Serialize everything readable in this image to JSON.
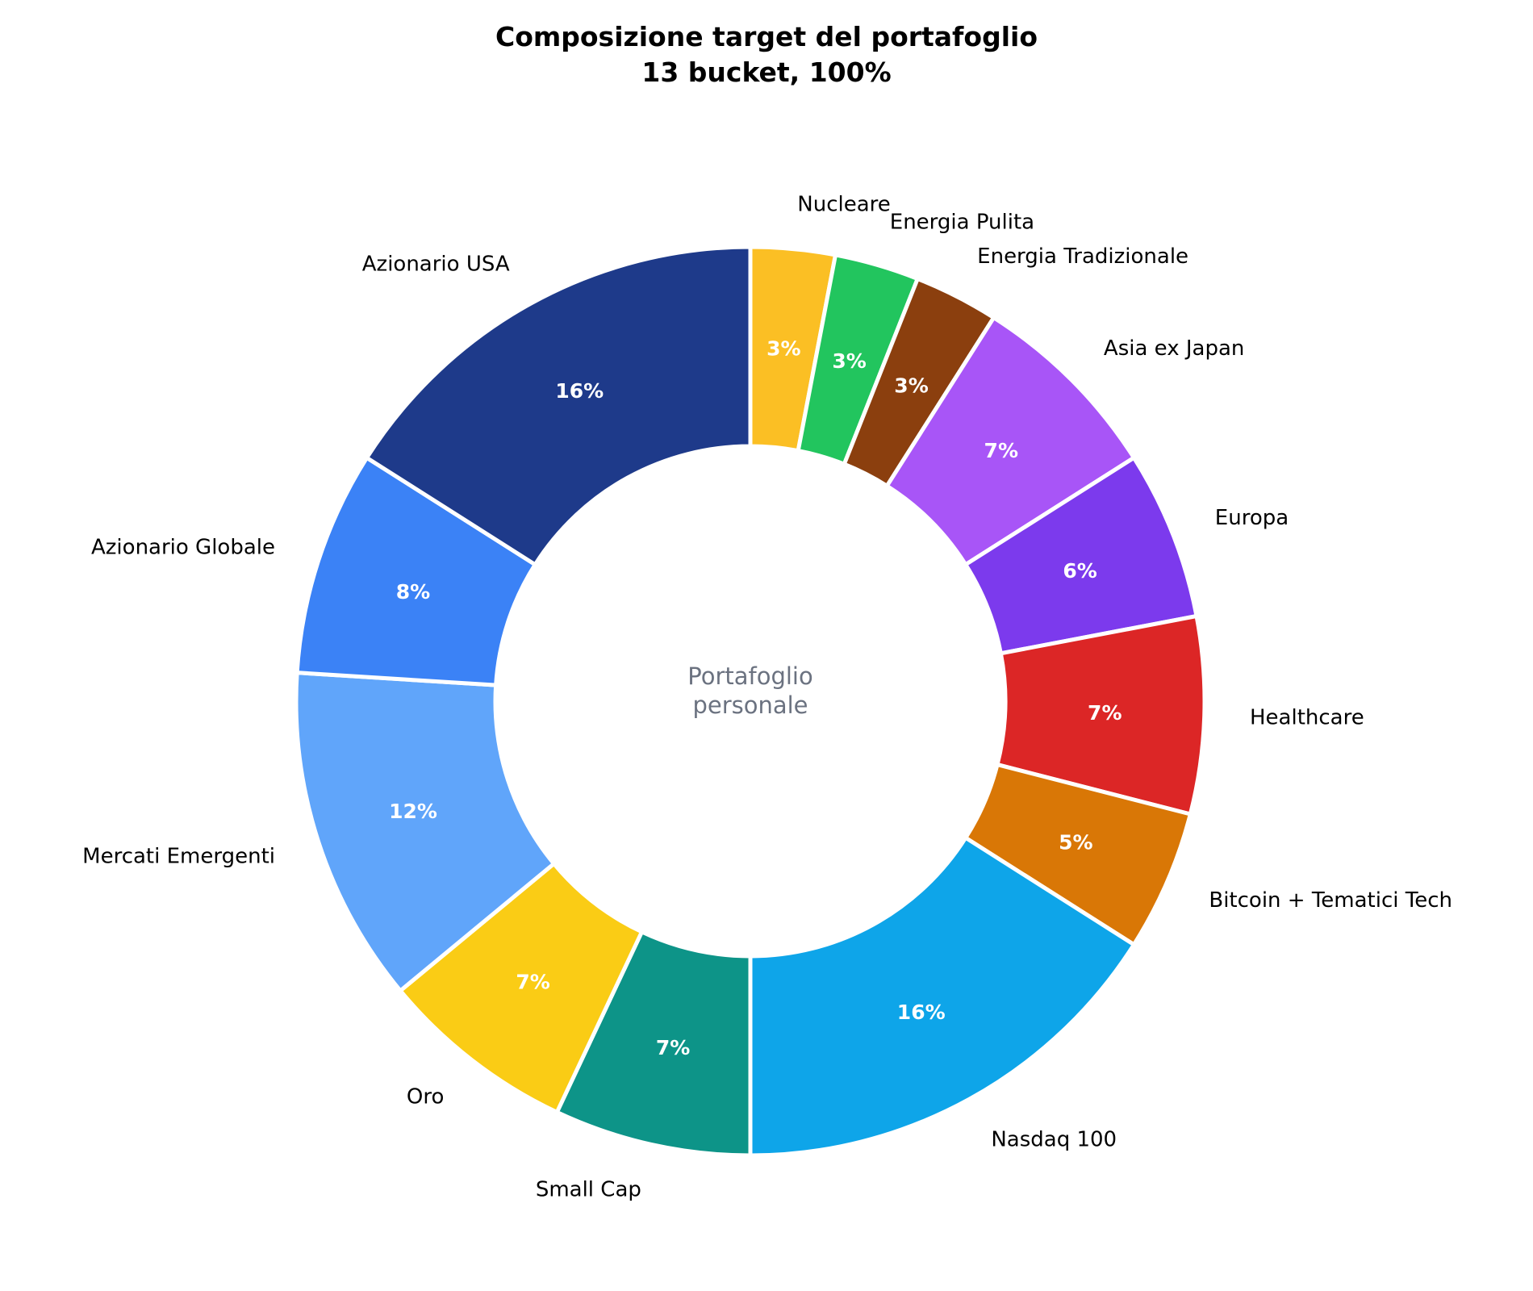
{
  "chart_data": {
    "type": "pie",
    "variant": "donut",
    "title": "Composizione target del portafoglio",
    "subtitle": "13 bucket, 100%",
    "center_label": [
      "Portafoglio",
      "personale"
    ],
    "start": "top, clockwise",
    "slices": [
      {
        "label": "Nucleare",
        "value": 3,
        "display": "3%",
        "color": "#fbbf24"
      },
      {
        "label": "Energia Pulita",
        "value": 3,
        "display": "3%",
        "color": "#22c55e"
      },
      {
        "label": "Energia Tradizionale",
        "value": 3,
        "display": "3%",
        "color": "#8b3f0e"
      },
      {
        "label": "Asia ex Japan",
        "value": 7,
        "display": "7%",
        "color": "#a855f7"
      },
      {
        "label": "Europa",
        "value": 6,
        "display": "6%",
        "color": "#7c3aed"
      },
      {
        "label": "Healthcare",
        "value": 7,
        "display": "7%",
        "color": "#dc2626"
      },
      {
        "label": "Bitcoin + Tematici Tech",
        "value": 5,
        "display": "5%",
        "color": "#d97706"
      },
      {
        "label": "Nasdaq 100",
        "value": 16,
        "display": "16%",
        "color": "#0ea5e9"
      },
      {
        "label": "Small Cap",
        "value": 7,
        "display": "7%",
        "color": "#0d9488"
      },
      {
        "label": "Oro",
        "value": 7,
        "display": "7%",
        "color": "#facc15"
      },
      {
        "label": "Mercati Emergenti",
        "value": 12,
        "display": "12%",
        "color": "#60a5fa"
      },
      {
        "label": "Azionario Globale",
        "value": 8,
        "display": "8%",
        "color": "#3b82f6"
      },
      {
        "label": "Azionario USA",
        "value": 16,
        "display": "16%",
        "color": "#1e3a8a"
      }
    ]
  }
}
